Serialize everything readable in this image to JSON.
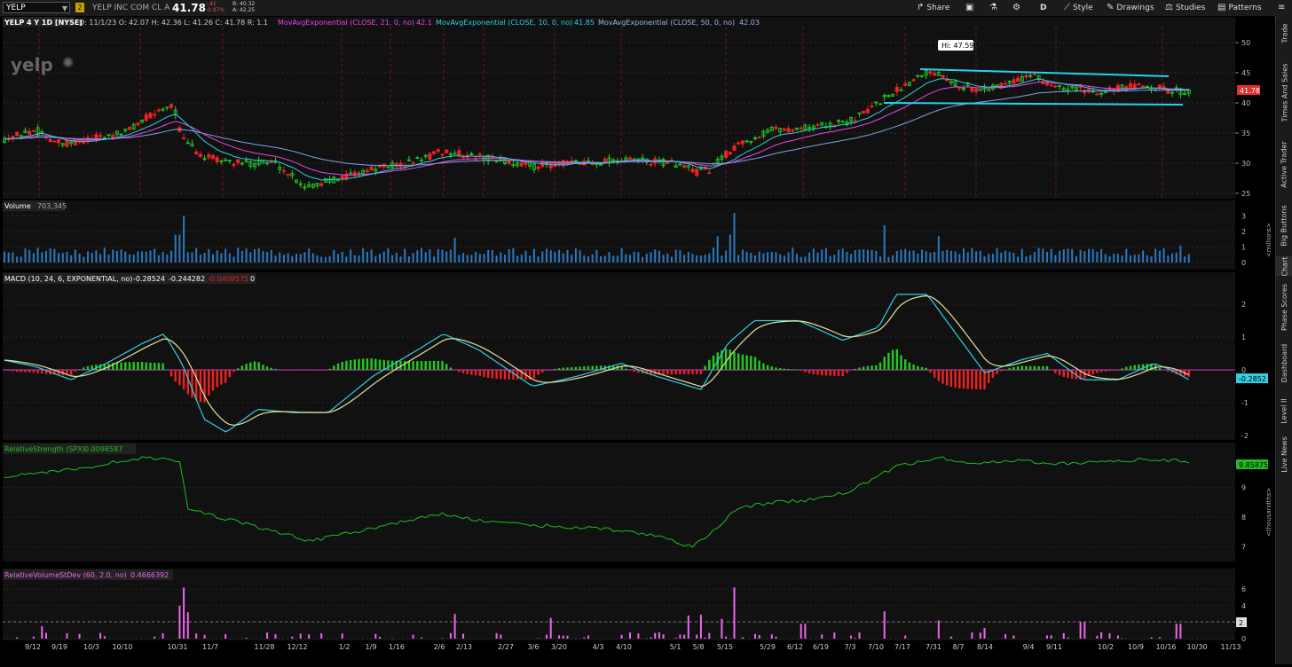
{
  "toolbar": {
    "symbol": "YELP",
    "link_badge": "2",
    "description": "YELP INC COM CL A",
    "last": "41.78",
    "change": "-.41",
    "change_pct": "-0.97%",
    "bid": "B: 40.32",
    "ask": "A: 42.25",
    "share": "Share",
    "style": "Style",
    "drawings": "Drawings",
    "studies": "Studies",
    "patterns": "Patterns",
    "period": "D"
  },
  "price_panel": {
    "header": "YELP 4 Y 1D [NYSE]",
    "ohlc": "D: 11/1/23   O: 42.07   H: 42.36   L: 41.26   C: 41.78   R: 1.1",
    "ema21_label": "MovAvgExponential (CLOSE, 21, 0, no)",
    "ema21_val": "42.1",
    "ema10_label": "MovAvgExponential (CLOSE, 10, 0, no)",
    "ema10_val": "41.85",
    "ema50_label": "MovAvgExponential (CLOSE, 50, 0, no)",
    "ema50_val": "42.03",
    "hi_label": "Hi: 47.59",
    "logo": "yelp",
    "price_badge": "41.78",
    "y_ticks": [
      "50",
      "45",
      "40",
      "35",
      "30",
      "25"
    ]
  },
  "volume_panel": {
    "label": "Volume",
    "value": "703,345",
    "y_ticks": [
      "3",
      "2",
      "1",
      "0"
    ],
    "units": "<millions>"
  },
  "macd_panel": {
    "label": "MACD (10, 24, 6, EXPONENTIAL, no)",
    "v1": "-0.28524",
    "v2": "-0.244282",
    "v3": "-0.0409575",
    "v4": "0",
    "badge": "-0.2852",
    "y_ticks": [
      "2",
      "1",
      "0",
      "-1",
      "-2"
    ]
  },
  "rs_panel": {
    "label": "RelativeStrength (SPX)",
    "value": "0.0098587",
    "badge": "9.85875",
    "y_ticks": [
      "9",
      "8",
      "7"
    ],
    "units": "<thousandths>"
  },
  "rv_panel": {
    "label": "RelativeVolumeStDev (60, 2.0, no)",
    "value": "0.466639",
    "v2": "2",
    "badge": "2",
    "y_ticks": [
      "6",
      "4",
      "2",
      "0"
    ]
  },
  "x_axis": [
    "9/12",
    "9/19",
    "10/3",
    "10/10",
    "10/31",
    "11/7",
    "11/28",
    "12/12",
    "1/2",
    "1/9",
    "1/16",
    "2/6",
    "2/13",
    "2/27",
    "3/6",
    "3/20",
    "4/3",
    "4/10",
    "5/1",
    "5/8",
    "5/15",
    "5/29",
    "6/12",
    "6/19",
    "7/3",
    "7/10",
    "7/17",
    "7/31",
    "8/7",
    "8/14",
    "9/4",
    "9/11",
    "10/2",
    "10/9",
    "10/16",
    "10/30",
    "11/13"
  ],
  "sidebar_tabs": [
    "Trade",
    "Times And Sales",
    "Active Trader",
    "Big Buttons",
    "Chart",
    "Phase Scores",
    "Dashboard",
    "Level II",
    "Live News"
  ],
  "colors": {
    "up": "#22cc22",
    "down": "#ee2222",
    "ema10": "#2fd0e0",
    "ema21": "#ee44ee",
    "ema50": "#7aa6e8",
    "trendline": "#22d4e8",
    "volume": "#2a79c0",
    "macd": "#2fd0e0",
    "signal": "#e8e0a0",
    "rs": "#22bb22",
    "rv": "#ee66ee"
  }
}
